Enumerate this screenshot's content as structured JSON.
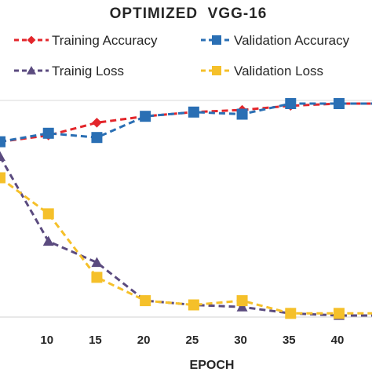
{
  "chart_data": {
    "type": "line",
    "title": "OPTIMIZED  VGG-16",
    "xlabel": "EPOCH",
    "ylabel": "",
    "x": [
      5,
      10,
      15,
      20,
      25,
      30,
      35,
      40,
      45
    ],
    "x_ticks": [
      10,
      15,
      20,
      25,
      30,
      35,
      40
    ],
    "xlim": [
      5,
      45
    ],
    "ylim": [
      0,
      1
    ],
    "grid": false,
    "legend_position": "top",
    "series": [
      {
        "name": "Training Accuracy",
        "color": "#e3262b",
        "marker": "diamond",
        "values": [
          0.82,
          0.85,
          0.91,
          0.94,
          0.96,
          0.97,
          0.99,
          1.0,
          1.0
        ]
      },
      {
        "name": "Validation Accuracy",
        "color": "#2a6fb4",
        "marker": "square",
        "values": [
          0.82,
          0.86,
          0.84,
          0.94,
          0.96,
          0.95,
          1.0,
          1.0,
          1.0
        ]
      },
      {
        "name": "Trainig Loss",
        "color": "#5b4b7f",
        "marker": "triangle",
        "values": [
          0.75,
          0.35,
          0.25,
          0.07,
          0.05,
          0.04,
          0.01,
          0.0,
          0.0
        ]
      },
      {
        "name": "Validation Loss",
        "color": "#f5c02a",
        "marker": "square",
        "values": [
          0.65,
          0.48,
          0.18,
          0.07,
          0.05,
          0.07,
          0.01,
          0.01,
          0.01
        ]
      }
    ]
  }
}
